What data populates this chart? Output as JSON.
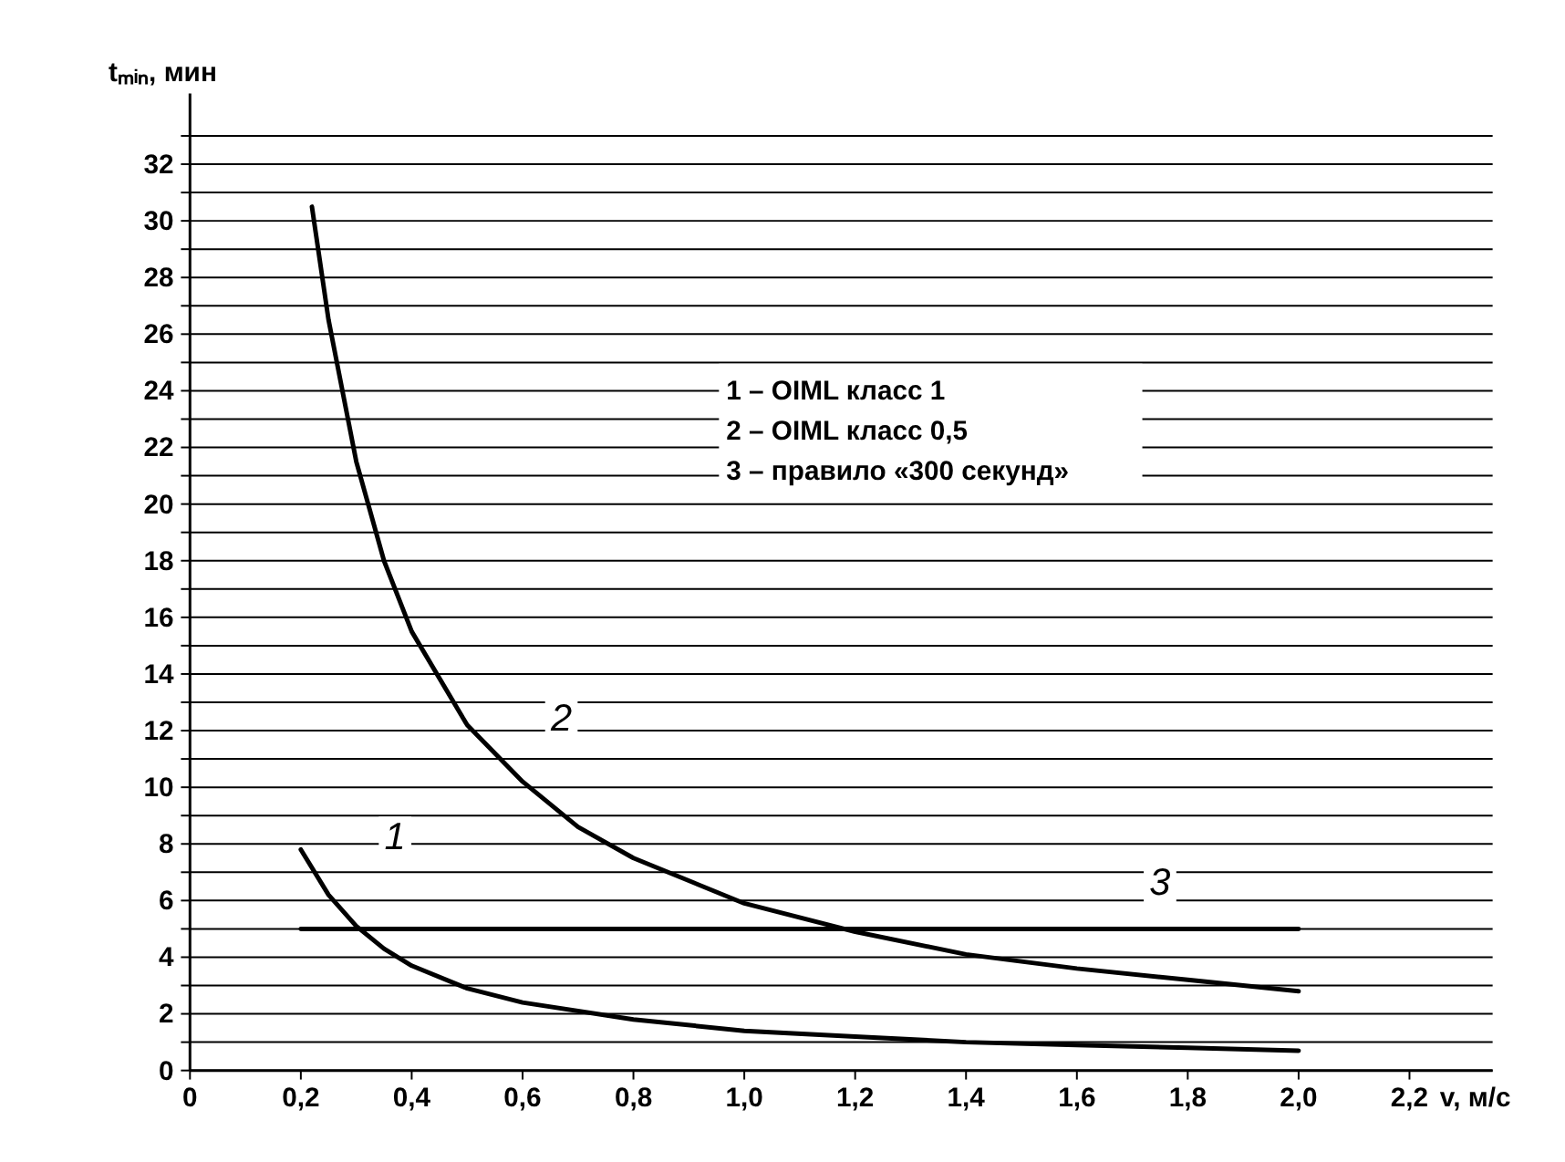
{
  "chart_data": {
    "type": "line",
    "ylabel": "tₘᵢₙ, мин",
    "xlabel": "v, м/с",
    "series": [
      {
        "color": "#000000",
        "x": [
          0.2,
          0.25,
          0.3,
          0.35,
          0.4,
          0.5,
          0.6,
          0.8,
          1.0,
          1.2,
          1.4,
          1.6,
          1.8,
          2.0
        ],
        "values": [
          7.8,
          6.2,
          5.1,
          4.3,
          3.7,
          2.9,
          2.4,
          1.8,
          1.4,
          1.2,
          1.0,
          0.9,
          0.8,
          0.7
        ]
      },
      {
        "color": "#000000",
        "x": [
          0.22,
          0.25,
          0.3,
          0.35,
          0.4,
          0.5,
          0.6,
          0.7,
          0.8,
          1.0,
          1.2,
          1.4,
          1.6,
          1.8,
          2.0
        ],
        "values": [
          30.5,
          26.5,
          21.5,
          18,
          15.5,
          12.2,
          10.2,
          8.6,
          7.5,
          5.9,
          4.9,
          4.1,
          3.6,
          3.2,
          2.8
        ]
      },
      {
        "color": "#000000",
        "x": [
          0.2,
          2.0
        ],
        "values": [
          5,
          5
        ]
      }
    ],
    "annotations": [
      "1",
      "2",
      "3",
      "1 – OIML класс 1",
      "2 – OIML класс 0,5",
      "3 – правило «300 секунд»"
    ],
    "xlim": [
      0,
      2.35
    ],
    "ylim": [
      0,
      34.5
    ],
    "xticks": [
      0,
      {
        "value": 0.2,
        "label": "0,2"
      },
      {
        "value": 0.4,
        "label": "0,4"
      },
      {
        "value": 0.6,
        "label": "0,6"
      },
      {
        "value": 0.8,
        "label": "0,8"
      },
      {
        "value": 1.0,
        "label": "1,0"
      },
      {
        "value": 1.2,
        "label": "1,2"
      },
      {
        "value": 1.4,
        "label": "1,4"
      },
      {
        "value": 1.6,
        "label": "1,6"
      },
      {
        "value": 1.8,
        "label": "1,8"
      },
      {
        "value": 2.0,
        "label": "2,0"
      },
      {
        "value": 2.2,
        "label": "2,2"
      }
    ],
    "yticks": [
      0,
      {
        "value": 1,
        "label": null
      },
      2,
      {
        "value": 3,
        "label": null
      },
      4,
      {
        "value": 5,
        "label": null
      },
      6,
      {
        "value": 7,
        "label": null
      },
      8,
      {
        "value": 9,
        "label": null
      },
      10,
      {
        "value": 11,
        "label": null
      },
      12,
      {
        "value": 13,
        "label": null
      },
      14,
      {
        "value": 15,
        "label": null
      },
      16,
      {
        "value": 17,
        "label": null
      },
      18,
      {
        "value": 19,
        "label": null
      },
      20,
      {
        "value": 21,
        "label": null
      },
      22,
      {
        "value": 23,
        "label": null
      },
      24,
      {
        "value": 25,
        "label": null
      },
      26,
      {
        "value": 27,
        "label": null
      },
      28,
      {
        "value": 29,
        "label": null
      },
      30,
      {
        "value": 31,
        "label": null
      },
      32,
      {
        "value": 33,
        "label": null
      }
    ],
    "grid": "y",
    "marker": "none",
    "line_style": "solid"
  }
}
